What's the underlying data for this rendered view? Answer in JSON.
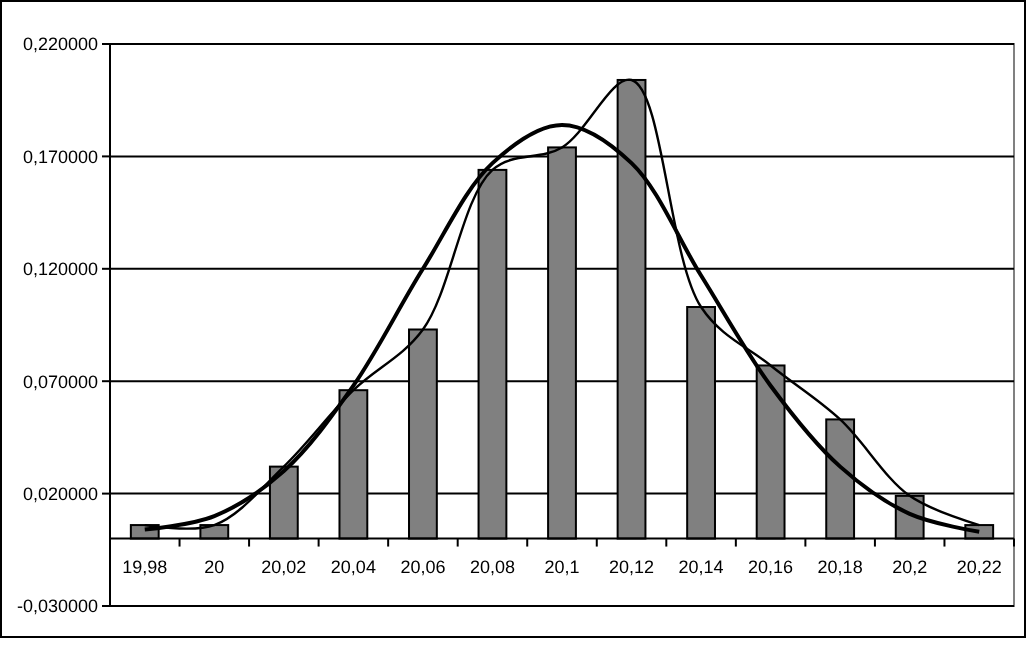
{
  "chart_data": {
    "type": "bar",
    "categories": [
      "19,98",
      "20",
      "20,02",
      "20,04",
      "20,06",
      "20,08",
      "20,1",
      "20,12",
      "20,14",
      "20,16",
      "20,18",
      "20,2",
      "20,22"
    ],
    "series": [
      {
        "color": "#808080",
        "values": [
          0.006,
          0.006,
          0.032,
          0.066,
          0.093,
          0.164,
          0.174,
          0.204,
          0.103,
          0.077,
          0.053,
          0.019,
          0.006
        ]
      },
      {
        "type": "line",
        "color": "#000000",
        "values": [
          0.006,
          0.006,
          0.032,
          0.066,
          0.093,
          0.164,
          0.174,
          0.204,
          0.103,
          0.077,
          0.053,
          0.019,
          0.006
        ]
      },
      {
        "type": "line",
        "color": "#000000",
        "values": [
          0.004,
          0.01,
          0.03,
          0.068,
          0.12,
          0.167,
          0.184,
          0.167,
          0.117,
          0.068,
          0.032,
          0.011,
          0.003
        ]
      }
    ],
    "ylim": [
      -0.03,
      0.22
    ],
    "yticks": [
      {
        "value": -0.03,
        "label": "-0,030000"
      },
      {
        "value": 0.02,
        "label": "0,020000"
      },
      {
        "value": 0.07,
        "label": "0,070000"
      },
      {
        "value": 0.12,
        "label": "0,120000"
      },
      {
        "value": 0.17,
        "label": "0,170000"
      },
      {
        "value": 0.22,
        "label": "0,220000"
      }
    ],
    "grid": "y",
    "marker": "none",
    "line_style": "solid"
  }
}
